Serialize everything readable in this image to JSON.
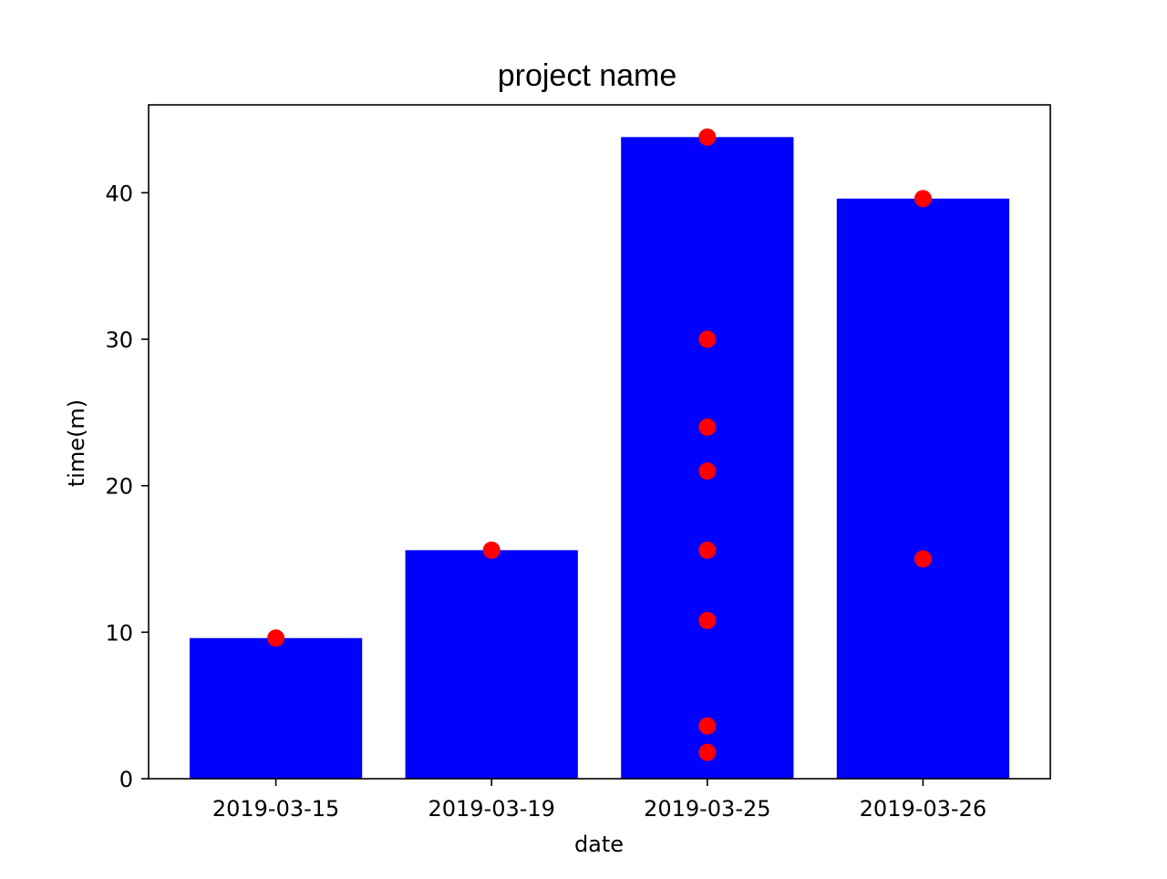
{
  "chart_data": {
    "type": "bar",
    "title": "project name",
    "xlabel": "date",
    "ylabel": "time(m)",
    "categories": [
      "2019-03-15",
      "2019-03-19",
      "2019-03-25",
      "2019-03-26"
    ],
    "values": [
      9.6,
      15.6,
      43.8,
      39.6
    ],
    "points": [
      [
        9.6
      ],
      [
        15.6
      ],
      [
        43.8,
        30.0,
        24.0,
        21.0,
        15.6,
        10.8,
        3.6,
        1.8
      ],
      [
        39.6,
        15.0
      ]
    ],
    "ylim": [
      0,
      46
    ],
    "yticks": [
      0,
      10,
      20,
      30,
      40
    ],
    "grid": false,
    "bar_color": "#0000ff",
    "point_color": "#ff0000"
  }
}
